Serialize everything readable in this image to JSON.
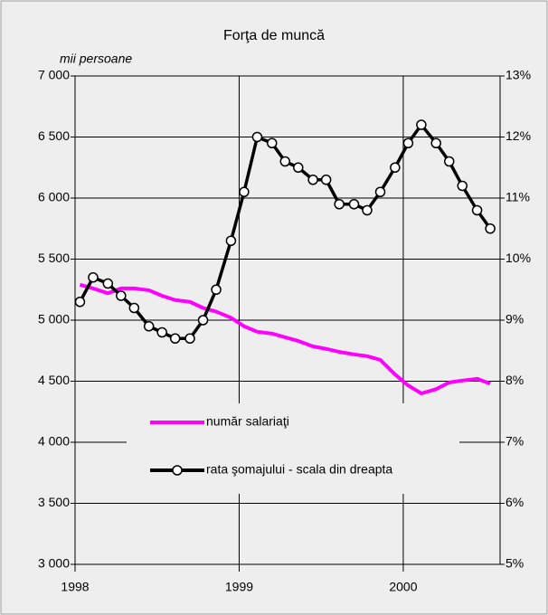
{
  "chart_data": {
    "type": "line",
    "title": "Forţa de muncă",
    "y_label": "mii persoane",
    "x": [
      1998.03,
      1998.11,
      1998.2,
      1998.28,
      1998.36,
      1998.45,
      1998.53,
      1998.61,
      1998.7,
      1998.78,
      1998.86,
      1998.95,
      1999.03,
      1999.11,
      1999.2,
      1999.28,
      1999.36,
      1999.45,
      1999.53,
      1999.61,
      1999.7,
      1999.78,
      1999.86,
      1999.95,
      2000.03,
      2000.11,
      2000.2,
      2000.28,
      2000.36,
      2000.45,
      2000.53
    ],
    "series": [
      {
        "name": "număr salariaţi",
        "color": "#ff00ff",
        "values": [
          5290,
          5260,
          5220,
          5260,
          5260,
          5245,
          5200,
          5165,
          5150,
          5100,
          5070,
          5020,
          4950,
          4905,
          4890,
          4860,
          4830,
          4785,
          4765,
          4740,
          4720,
          4705,
          4675,
          4555,
          4465,
          4400,
          4435,
          4490,
          4505,
          4520,
          4480
        ]
      },
      {
        "name": "rata şomajului - scala din dreapta",
        "color": "#000000",
        "axis": "y2",
        "marker": "circle",
        "values": [
          9.3,
          9.7,
          9.6,
          9.4,
          9.2,
          8.9,
          8.8,
          8.7,
          8.7,
          9.0,
          9.5,
          10.3,
          11.1,
          12.0,
          11.9,
          11.6,
          11.5,
          11.3,
          11.3,
          10.9,
          10.9,
          10.8,
          11.1,
          11.5,
          11.9,
          12.2,
          11.9,
          11.6,
          11.2,
          10.8,
          10.5
        ]
      }
    ],
    "xlim": [
      1998,
      2000.59
    ],
    "xticks": [
      1998,
      1999,
      2000
    ],
    "ylim": [
      3000,
      7000
    ],
    "yticks": [
      {
        "value": 3000,
        "label": "3 000"
      },
      {
        "value": 3500,
        "label": "3 500"
      },
      {
        "value": 4000,
        "label": "4 000"
      },
      {
        "value": 4500,
        "label": "4 500"
      },
      {
        "value": 5000,
        "label": "5 000"
      },
      {
        "value": 5500,
        "label": "5 500"
      },
      {
        "value": 6000,
        "label": "6 000"
      },
      {
        "value": 6500,
        "label": "6 500"
      },
      {
        "value": 7000,
        "label": "7 000"
      }
    ],
    "y2lim": [
      5,
      13
    ],
    "y2ticks": [
      {
        "value": 5,
        "label": "5%"
      },
      {
        "value": 6,
        "label": "6%"
      },
      {
        "value": 7,
        "label": "7%"
      },
      {
        "value": 8,
        "label": "8%"
      },
      {
        "value": 9,
        "label": "9%"
      },
      {
        "value": 10,
        "label": "10%"
      },
      {
        "value": 11,
        "label": "11%"
      },
      {
        "value": 12,
        "label": "12%"
      },
      {
        "value": 13,
        "label": "13%"
      }
    ],
    "grid": true
  }
}
